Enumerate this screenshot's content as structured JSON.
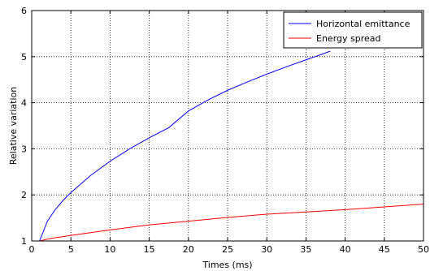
{
  "chart_data": {
    "type": "line",
    "title": "",
    "xlabel": "Times (ms)",
    "ylabel": "Relative variation",
    "xlim": [
      0,
      50
    ],
    "ylim": [
      1,
      6
    ],
    "x_ticks": [
      0,
      5,
      10,
      15,
      20,
      25,
      30,
      35,
      40,
      45,
      50
    ],
    "y_ticks": [
      1,
      2,
      3,
      4,
      5,
      6
    ],
    "grid": true,
    "grid_style": "dotted",
    "legend_position": "top-right",
    "series": [
      {
        "name": "Horizontal emittance",
        "color": "#0000ff",
        "x": [
          1,
          2,
          3,
          4,
          5,
          7.5,
          10,
          12.5,
          15,
          17.5,
          20,
          22.5,
          25,
          27.5,
          30,
          32.5,
          35,
          37.5,
          38.1
        ],
        "y": [
          1.0,
          1.43,
          1.68,
          1.88,
          2.05,
          2.42,
          2.73,
          3.0,
          3.24,
          3.46,
          3.82,
          4.06,
          4.27,
          4.45,
          4.62,
          4.78,
          4.93,
          5.08,
          5.12
        ]
      },
      {
        "name": "Energy spread",
        "color": "#ff0000",
        "x": [
          1,
          2,
          3,
          5,
          7.5,
          10,
          15,
          20,
          25,
          30,
          35,
          40,
          45,
          50
        ],
        "y": [
          1.0,
          1.04,
          1.07,
          1.12,
          1.18,
          1.24,
          1.35,
          1.43,
          1.51,
          1.58,
          1.63,
          1.68,
          1.74,
          1.8
        ]
      }
    ]
  }
}
